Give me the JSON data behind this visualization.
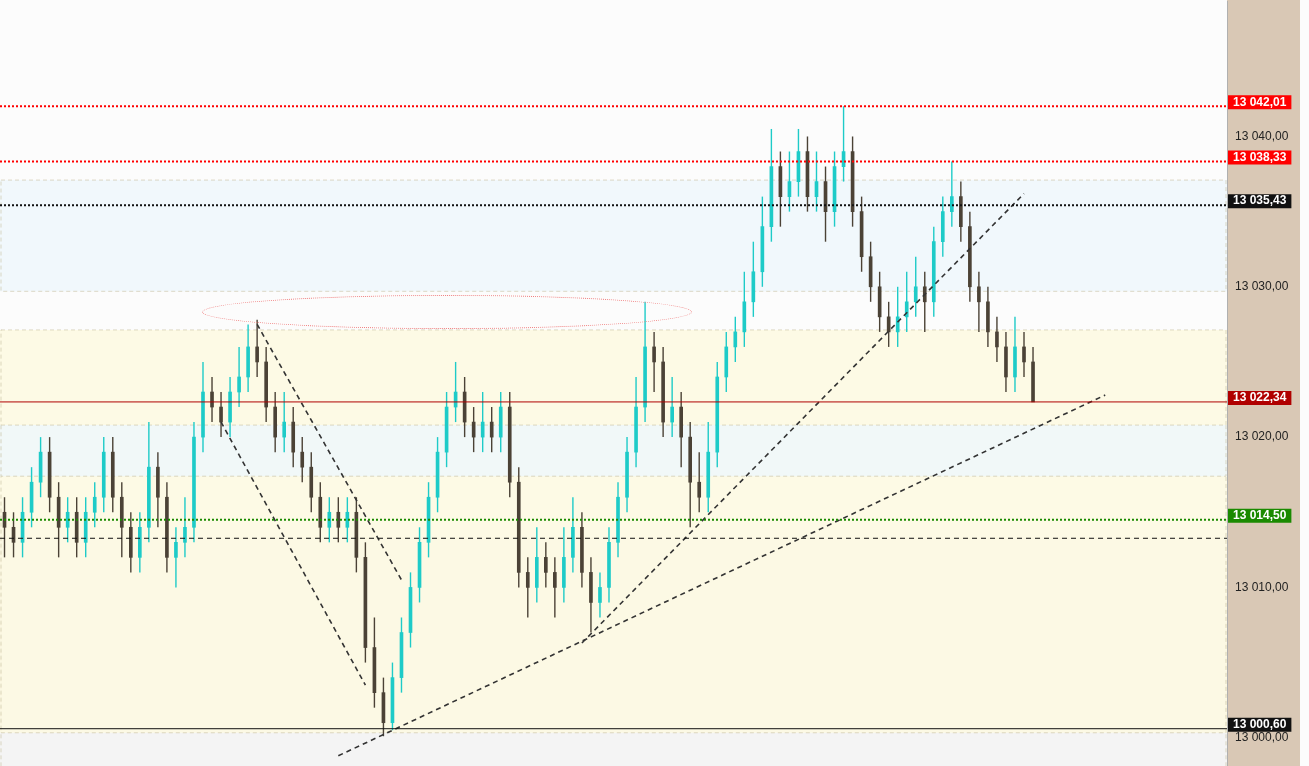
{
  "chart_data": {
    "type": "candlestick",
    "categories": [
      null,
      null,
      null,
      null,
      null,
      null,
      null,
      null,
      null,
      null,
      null,
      null,
      null,
      null,
      null,
      null,
      null,
      null,
      null,
      null,
      null,
      null,
      null,
      null,
      null,
      null,
      null,
      null,
      null,
      null,
      null,
      null,
      null,
      null,
      null,
      null,
      null,
      null,
      null,
      null,
      null,
      null,
      null,
      null,
      null,
      null,
      null,
      null,
      null,
      null,
      null,
      null,
      null,
      null,
      null,
      null,
      null,
      null,
      null,
      null,
      null,
      null,
      null,
      null,
      null,
      null,
      null,
      null,
      null,
      null,
      null,
      null,
      null,
      null,
      null,
      null,
      null,
      null,
      null,
      null,
      null,
      null,
      null,
      null,
      null,
      null,
      null,
      null,
      null,
      null,
      null,
      null,
      null,
      null,
      null,
      null,
      null,
      null,
      null,
      null,
      null,
      null,
      null,
      null,
      null,
      null,
      null,
      null,
      null,
      null,
      null,
      null,
      null,
      null,
      null,
      null,
      null,
      null,
      null,
      null,
      null,
      null,
      null,
      null,
      null,
      null,
      null,
      null,
      null,
      null,
      null,
      null,
      null,
      null,
      null,
      null
    ],
    "ohlc": [
      [
        13015,
        13016,
        13012,
        13014
      ],
      [
        13014,
        13015,
        13012,
        13013
      ],
      [
        13013,
        13016,
        13012,
        13015
      ],
      [
        13015,
        13018,
        13014,
        13017
      ],
      [
        13017,
        13020,
        13016,
        13019
      ],
      [
        13019,
        13020,
        13015,
        13016
      ],
      [
        13016,
        13017,
        13012,
        13014
      ],
      [
        13014,
        13016,
        13013,
        13015
      ],
      [
        13015,
        13016,
        13012,
        13013
      ],
      [
        13013,
        13016,
        13012,
        13015
      ],
      [
        13015,
        13017,
        13014,
        13016
      ],
      [
        13016,
        13020,
        13015,
        13019
      ],
      [
        13019,
        13020,
        13015,
        13016
      ],
      [
        13016,
        13017,
        13012,
        13014
      ],
      [
        13014,
        13015,
        13011,
        13012
      ],
      [
        13012,
        13015,
        13011,
        13014
      ],
      [
        13014,
        13021,
        13013,
        13018
      ],
      [
        13018,
        13019,
        13014,
        13016
      ],
      [
        13016,
        13017,
        13011,
        13012
      ],
      [
        13012,
        13014,
        13010,
        13013
      ],
      [
        13013,
        13016,
        13012,
        13014
      ],
      [
        13014,
        13021,
        13013,
        13020
      ],
      [
        13020,
        13025,
        13019,
        13023
      ],
      [
        13023,
        13024,
        13021,
        13022
      ],
      [
        13022,
        13023,
        13020,
        13021
      ],
      [
        13021,
        13024,
        13020,
        13023
      ],
      [
        13023,
        13026,
        13022,
        13024
      ],
      [
        13024,
        13027.5,
        13023,
        13026
      ],
      [
        13026,
        13027.8,
        13024,
        13025
      ],
      [
        13025,
        13026,
        13021,
        13022
      ],
      [
        13022,
        13023,
        13019,
        13020
      ],
      [
        13020,
        13023,
        13019,
        13021
      ],
      [
        13021,
        13022,
        13018,
        13019
      ],
      [
        13019,
        13020,
        13017,
        13018
      ],
      [
        13018,
        13019,
        13015,
        13016
      ],
      [
        13016,
        13017,
        13013,
        13014
      ],
      [
        13014,
        13016,
        13013,
        13015
      ],
      [
        13015,
        13016,
        13013,
        13014
      ],
      [
        13014,
        13016,
        13013,
        13015
      ],
      [
        13015,
        13016,
        13011,
        13012
      ],
      [
        13012,
        13013,
        13005,
        13006
      ],
      [
        13006,
        13008,
        13002,
        13003
      ],
      [
        13003,
        13004,
        13000.1,
        13001
      ],
      [
        13001,
        13005,
        13000.5,
        13004
      ],
      [
        13004,
        13008,
        13003,
        13007
      ],
      [
        13007,
        13011,
        13006,
        13010
      ],
      [
        13010,
        13014,
        13009,
        13013
      ],
      [
        13013,
        13017,
        13012,
        13016
      ],
      [
        13016,
        13020,
        13015,
        13019
      ],
      [
        13019,
        13023,
        13018,
        13022
      ],
      [
        13022,
        13025,
        13021,
        13023
      ],
      [
        13023,
        13024,
        13020,
        13021
      ],
      [
        13021,
        13022,
        13019,
        13020
      ],
      [
        13020,
        13023,
        13019,
        13021
      ],
      [
        13021,
        13022,
        13019,
        13020
      ],
      [
        13020,
        13023,
        13019,
        13022
      ],
      [
        13022,
        13023,
        13016,
        13017
      ],
      [
        13017,
        13018,
        13010,
        13011
      ],
      [
        13011,
        13012,
        13008,
        13010
      ],
      [
        13010,
        13014,
        13009,
        13012
      ],
      [
        13012,
        13013,
        13010,
        13011
      ],
      [
        13011,
        13012,
        13008,
        13010
      ],
      [
        13010,
        13014,
        13009,
        13012
      ],
      [
        13012,
        13016,
        13011,
        13014
      ],
      [
        13014,
        13015,
        13010,
        13011
      ],
      [
        13011,
        13012,
        13007,
        13009
      ],
      [
        13009,
        13011,
        13008,
        13010
      ],
      [
        13010,
        13014,
        13009,
        13013
      ],
      [
        13013,
        13017,
        13012,
        13016
      ],
      [
        13016,
        13020,
        13015,
        13019
      ],
      [
        13019,
        13024,
        13018,
        13022
      ],
      [
        13022,
        13029,
        13021,
        13026
      ],
      [
        13026,
        13027,
        13023,
        13025
      ],
      [
        13025,
        13026,
        13020,
        13021
      ],
      [
        13021,
        13024,
        13020,
        13022
      ],
      [
        13022,
        13023,
        13018,
        13020
      ],
      [
        13020,
        13021,
        13014,
        13017
      ],
      [
        13017,
        13019,
        13015,
        13016
      ],
      [
        13016,
        13021,
        13015,
        13019
      ],
      [
        13019,
        13025,
        13018,
        13024
      ],
      [
        13024,
        13027,
        13023,
        13026
      ],
      [
        13026,
        13028,
        13025,
        13027
      ],
      [
        13027,
        13031,
        13026,
        13029
      ],
      [
        13029,
        13033,
        13028,
        13031
      ],
      [
        13031,
        13036,
        13030,
        13034
      ],
      [
        13034,
        13040.5,
        13033,
        13038
      ],
      [
        13038,
        13039,
        13034,
        13036
      ],
      [
        13036,
        13039,
        13035,
        13037
      ],
      [
        13037,
        13040.5,
        13036,
        13039
      ],
      [
        13039,
        13040,
        13035,
        13036
      ],
      [
        13036,
        13039,
        13035,
        13037
      ],
      [
        13037,
        13038,
        13033,
        13035
      ],
      [
        13035,
        13039,
        13034,
        13038
      ],
      [
        13038,
        13042.01,
        13037,
        13039
      ],
      [
        13039,
        13040,
        13034,
        13035
      ],
      [
        13035,
        13036,
        13031,
        13032
      ],
      [
        13032,
        13033,
        13029,
        13030
      ],
      [
        13030,
        13031,
        13027,
        13028
      ],
      [
        13028,
        13029,
        13026,
        13027
      ],
      [
        13027,
        13030,
        13026,
        13028
      ],
      [
        13028,
        13031,
        13027,
        13029
      ],
      [
        13029,
        13032,
        13028,
        13030
      ],
      [
        13030,
        13031,
        13027,
        13029
      ],
      [
        13029,
        13034,
        13028,
        13033
      ],
      [
        13033,
        13036,
        13032,
        13035
      ],
      [
        13035,
        13038.33,
        13034,
        13036
      ],
      [
        13036,
        13037,
        13033,
        13034
      ],
      [
        13034,
        13035,
        13029,
        13030
      ],
      [
        13030,
        13031,
        13027,
        13029
      ],
      [
        13029,
        13030,
        13026,
        13027
      ],
      [
        13027,
        13028,
        13025,
        13026
      ],
      [
        13026,
        13027,
        13023,
        13024
      ],
      [
        13024,
        13028,
        13023,
        13026
      ],
      [
        13026,
        13027,
        13024,
        13025
      ],
      [
        13025,
        13026,
        13022.34,
        13022.34
      ],
      null,
      null,
      null,
      null,
      null,
      null,
      null,
      null,
      null,
      null,
      null,
      null,
      null,
      null,
      null,
      null,
      null,
      null,
      null,
      null,
      null
    ],
    "colors": [
      "#4b4236",
      "#4b4236",
      "#1ecbc8",
      "#1ecbc8",
      "#1ecbc8",
      "#4b4236",
      "#4b4236",
      "#1ecbc8",
      "#4b4236",
      "#1ecbc8",
      "#1ecbc8",
      "#1ecbc8",
      "#4b4236",
      "#4b4236",
      "#4b4236",
      "#1ecbc8",
      "#1ecbc8",
      "#4b4236",
      "#4b4236",
      "#1ecbc8",
      "#1ecbc8",
      "#1ecbc8",
      "#1ecbc8",
      "#4b4236",
      "#4b4236",
      "#1ecbc8",
      "#1ecbc8",
      "#1ecbc8",
      "#4b4236",
      "#4b4236",
      "#4b4236",
      "#1ecbc8",
      "#4b4236",
      "#4b4236",
      "#4b4236",
      "#4b4236",
      "#1ecbc8",
      "#4b4236",
      "#1ecbc8",
      "#4b4236",
      "#4b4236",
      "#4b4236",
      "#4b4236",
      "#1ecbc8",
      "#1ecbc8",
      "#1ecbc8",
      "#1ecbc8",
      "#1ecbc8",
      "#1ecbc8",
      "#1ecbc8",
      "#1ecbc8",
      "#4b4236",
      "#4b4236",
      "#1ecbc8",
      "#4b4236",
      "#1ecbc8",
      "#4b4236",
      "#4b4236",
      "#4b4236",
      "#1ecbc8",
      "#4b4236",
      "#4b4236",
      "#1ecbc8",
      "#1ecbc8",
      "#4b4236",
      "#4b4236",
      "#1ecbc8",
      "#1ecbc8",
      "#1ecbc8",
      "#1ecbc8",
      "#1ecbc8",
      "#1ecbc8",
      "#4b4236",
      "#4b4236",
      "#1ecbc8",
      "#4b4236",
      "#4b4236",
      "#4b4236",
      "#1ecbc8",
      "#1ecbc8",
      "#1ecbc8",
      "#1ecbc8",
      "#1ecbc8",
      "#1ecbc8",
      "#1ecbc8",
      "#1ecbc8",
      "#4b4236",
      "#1ecbc8",
      "#1ecbc8",
      "#4b4236",
      "#1ecbc8",
      "#4b4236",
      "#1ecbc8",
      "#1ecbc8",
      "#4b4236",
      "#4b4236",
      "#4b4236",
      "#4b4236",
      "#4b4236",
      "#1ecbc8",
      "#1ecbc8",
      "#1ecbc8",
      "#4b4236",
      "#1ecbc8",
      "#1ecbc8",
      "#1ecbc8",
      "#4b4236",
      "#4b4236",
      "#4b4236",
      "#4b4236",
      "#4b4236",
      "#4b4236",
      "#1ecbc8",
      "#4b4236",
      "#4b4236",
      null,
      null,
      null,
      null,
      null,
      null,
      null,
      null,
      null,
      null,
      null,
      null,
      null,
      null,
      null,
      null,
      null,
      null,
      null,
      null,
      null
    ],
    "series": [
      {
        "type": "line",
        "color": "#333333",
        "line_style": "dashed",
        "values": [
          null,
          null,
          null,
          null,
          null,
          null,
          null,
          null,
          null,
          null,
          null,
          null,
          null,
          null,
          null,
          null,
          null,
          null,
          null,
          null,
          null,
          null,
          null,
          null,
          null,
          null,
          null,
          null,
          13027.5,
          null,
          null,
          null,
          null,
          null,
          null,
          null,
          null,
          null,
          null,
          null,
          null,
          null,
          null,
          null,
          13010.5,
          null,
          null,
          null,
          null,
          null,
          null,
          null,
          null,
          null,
          null,
          null,
          null,
          null,
          null,
          null,
          null,
          null,
          null,
          null,
          null,
          null,
          null,
          null,
          null,
          null,
          null,
          null,
          null,
          null,
          null,
          null,
          null,
          null,
          null,
          null,
          null,
          null,
          null,
          null,
          null,
          null,
          null,
          null,
          null,
          null,
          null,
          null,
          null,
          null,
          null,
          null,
          null,
          null,
          null,
          null,
          null,
          null,
          null,
          null,
          null,
          null,
          null,
          null,
          null,
          null,
          null,
          null,
          null,
          null,
          null,
          null,
          null,
          null,
          null,
          null,
          null,
          null,
          null,
          null,
          null,
          null,
          null,
          null,
          null,
          null,
          null,
          null,
          null,
          null,
          null,
          null
        ]
      },
      {
        "type": "line",
        "color": "#333333",
        "line_style": "dashed",
        "values": [
          null,
          null,
          null,
          null,
          null,
          null,
          null,
          null,
          null,
          null,
          null,
          null,
          null,
          null,
          null,
          null,
          null,
          null,
          null,
          null,
          null,
          null,
          null,
          null,
          13021,
          null,
          null,
          null,
          null,
          null,
          null,
          null,
          null,
          null,
          null,
          null,
          null,
          null,
          null,
          null,
          13003.5,
          null,
          null,
          null,
          null,
          null,
          null,
          null,
          null,
          null,
          null,
          null,
          null,
          null,
          null,
          null,
          null,
          null,
          null,
          null,
          null,
          null,
          null,
          null,
          null,
          null,
          null,
          null,
          null,
          null,
          null,
          null,
          null,
          null,
          null,
          null,
          null,
          null,
          null,
          null,
          null,
          null,
          null,
          null,
          null,
          null,
          null,
          null,
          null,
          null,
          null,
          null,
          null,
          null,
          null,
          null,
          null,
          null,
          null,
          null,
          null,
          null,
          null,
          null,
          null,
          null,
          null,
          null,
          null,
          null,
          null,
          null,
          null,
          null,
          null,
          null,
          null,
          null,
          null,
          null,
          null,
          null,
          null,
          null,
          null,
          null,
          null,
          null,
          null,
          null,
          null,
          null,
          null,
          null,
          null,
          null
        ]
      },
      {
        "type": "line",
        "color": "#333333",
        "line_style": "dashed",
        "values": [
          null,
          null,
          null,
          null,
          null,
          null,
          null,
          null,
          null,
          null,
          null,
          null,
          null,
          null,
          null,
          null,
          null,
          null,
          null,
          null,
          null,
          null,
          null,
          null,
          null,
          null,
          null,
          null,
          null,
          null,
          null,
          null,
          null,
          null,
          null,
          null,
          null,
          null,
          null,
          null,
          null,
          null,
          null,
          null,
          null,
          null,
          null,
          null,
          null,
          null,
          null,
          null,
          null,
          null,
          null,
          null,
          null,
          null,
          null,
          null,
          null,
          null,
          null,
          null,
          13006.3,
          null,
          null,
          null,
          null,
          null,
          null,
          null,
          null,
          null,
          null,
          null,
          null,
          null,
          null,
          null,
          null,
          null,
          null,
          null,
          null,
          null,
          null,
          null,
          null,
          null,
          null,
          null,
          null,
          null,
          null,
          null,
          null,
          null,
          null,
          null,
          null,
          null,
          null,
          null,
          null,
          null,
          null,
          null,
          null,
          null,
          null,
          null,
          null,
          13036.2,
          null,
          null,
          null,
          null,
          null,
          null,
          null,
          null,
          null,
          null,
          null,
          null,
          null,
          null,
          null,
          null,
          null,
          null,
          null,
          null,
          null,
          null
        ]
      },
      {
        "type": "line",
        "color": "#333333",
        "line_style": "dashed",
        "values": [
          null,
          null,
          null,
          null,
          null,
          null,
          null,
          null,
          null,
          null,
          null,
          null,
          null,
          null,
          null,
          null,
          null,
          null,
          null,
          null,
          null,
          null,
          null,
          null,
          null,
          null,
          null,
          null,
          null,
          null,
          null,
          null,
          null,
          null,
          null,
          null,
          null,
          12998.8,
          null,
          null,
          null,
          null,
          null,
          null,
          null,
          null,
          null,
          null,
          null,
          null,
          null,
          null,
          null,
          null,
          null,
          null,
          null,
          null,
          null,
          null,
          null,
          null,
          null,
          null,
          null,
          null,
          null,
          null,
          null,
          null,
          null,
          null,
          null,
          null,
          null,
          null,
          null,
          null,
          null,
          null,
          null,
          null,
          null,
          null,
          null,
          null,
          null,
          null,
          null,
          null,
          null,
          null,
          null,
          null,
          null,
          null,
          null,
          null,
          null,
          null,
          null,
          null,
          null,
          null,
          null,
          null,
          null,
          null,
          null,
          null,
          null,
          null,
          null,
          null,
          null,
          null,
          null,
          null,
          null,
          null,
          null,
          null,
          13022.8,
          null,
          null,
          null,
          null,
          null,
          null,
          null,
          null,
          null,
          null,
          null,
          null,
          null
        ]
      }
    ],
    "ylim": [
      12998,
      13049
    ],
    "yticks": [
      {
        "value": 13000,
        "label": "13 000,00"
      },
      {
        "value": 13010,
        "label": "13 010,00"
      },
      {
        "value": 13020,
        "label": "13 020,00"
      },
      {
        "value": 13030,
        "label": "13 030,00"
      },
      {
        "value": 13040,
        "label": "13 040,00"
      }
    ],
    "tick_labels": "y",
    "grid": false,
    "legend": false,
    "marker": "none",
    "bands": [
      {
        "axis": "y",
        "from": 12998,
        "to": 13013.27,
        "color": "#f2f2f2"
      },
      {
        "axis": "y",
        "from": 13000.33,
        "to": 13027.13,
        "color": "#fdf9e0"
      },
      {
        "axis": "y",
        "from": 13029.7,
        "to": 13037.1,
        "color": "#eef7fb"
      },
      {
        "axis": "y",
        "from": 13017.4,
        "to": 13020.8,
        "color": "#eef7fb"
      }
    ],
    "ref_lines": [
      {
        "axis": "y",
        "value": 13042.01,
        "label": "13 042,01",
        "color": "#ff0000",
        "line_style": "dotted"
      },
      {
        "axis": "y",
        "value": 13038.33,
        "label": "13 038,33",
        "color": "#ff0000",
        "line_style": "dotted"
      },
      {
        "axis": "y",
        "value": 13035.43,
        "label": "13 035,43",
        "color": "#111111",
        "line_style": "dotted"
      },
      {
        "axis": "y",
        "value": 13022.34,
        "label": "13 022,34",
        "color": "#b00000",
        "line_style": "solid"
      },
      {
        "axis": "y",
        "value": 13014.5,
        "label": "13 014,50",
        "color": "#1a8a00",
        "line_style": "dotted"
      },
      {
        "axis": "y",
        "value": 13013.27,
        "label": null,
        "color": "#111111",
        "line_style": "dashed"
      },
      {
        "axis": "y",
        "value": 13000.6,
        "label": "13 000,60",
        "color": "#111111",
        "line_style": "solid"
      }
    ]
  }
}
